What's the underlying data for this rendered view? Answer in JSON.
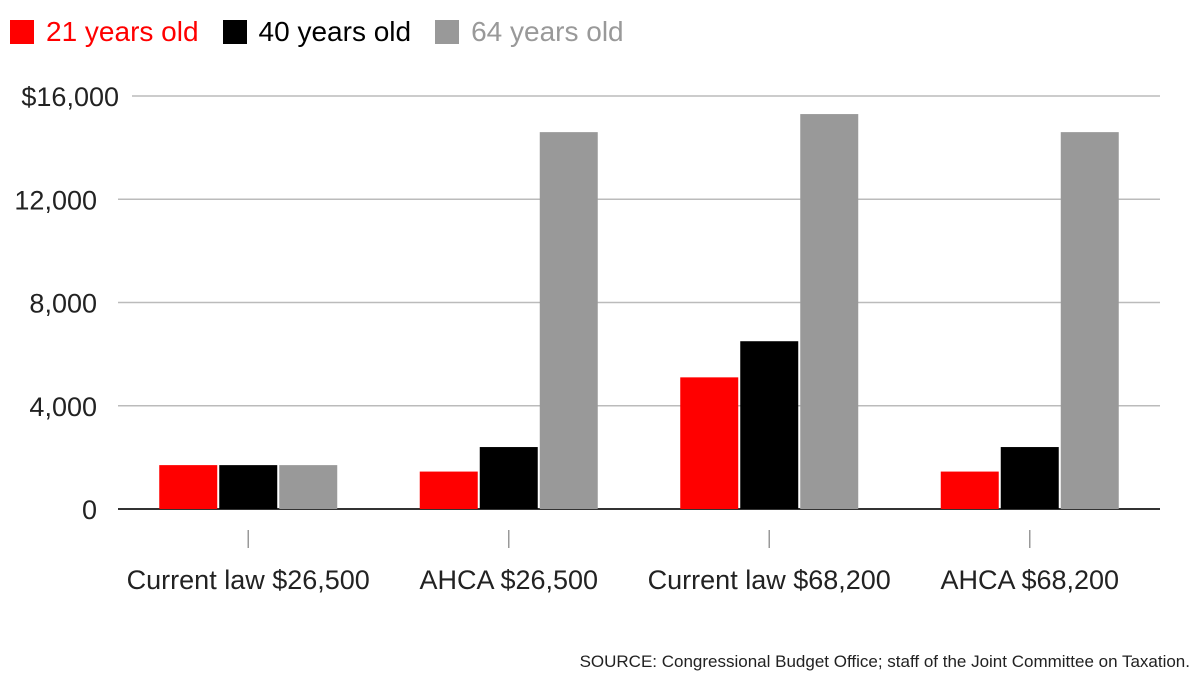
{
  "chart_data": {
    "type": "bar",
    "title": "",
    "xlabel": "",
    "ylabel": "",
    "categories": [
      "Current law $26,500",
      "AHCA $26,500",
      "Current law $68,200",
      "AHCA $68,200"
    ],
    "series": [
      {
        "name": "21 years old",
        "color": "#ff0000",
        "values": [
          1700,
          1450,
          5100,
          1450
        ]
      },
      {
        "name": "40 years old",
        "color": "#000000",
        "values": [
          1700,
          2400,
          6500,
          2400
        ]
      },
      {
        "name": "64 years old",
        "color": "#999999",
        "values": [
          1700,
          14600,
          15300,
          14600
        ]
      }
    ],
    "ylim": [
      0,
      16000
    ],
    "yticks": [
      0,
      4000,
      8000,
      12000,
      16000
    ],
    "ytick_labels": [
      "0",
      "4,000",
      "8,000",
      "12,000",
      "$16,000"
    ],
    "grid": true,
    "legend_position": "top-left"
  },
  "source": "SOURCE: Congressional Budget Office; staff of the Joint Committee on Taxation."
}
